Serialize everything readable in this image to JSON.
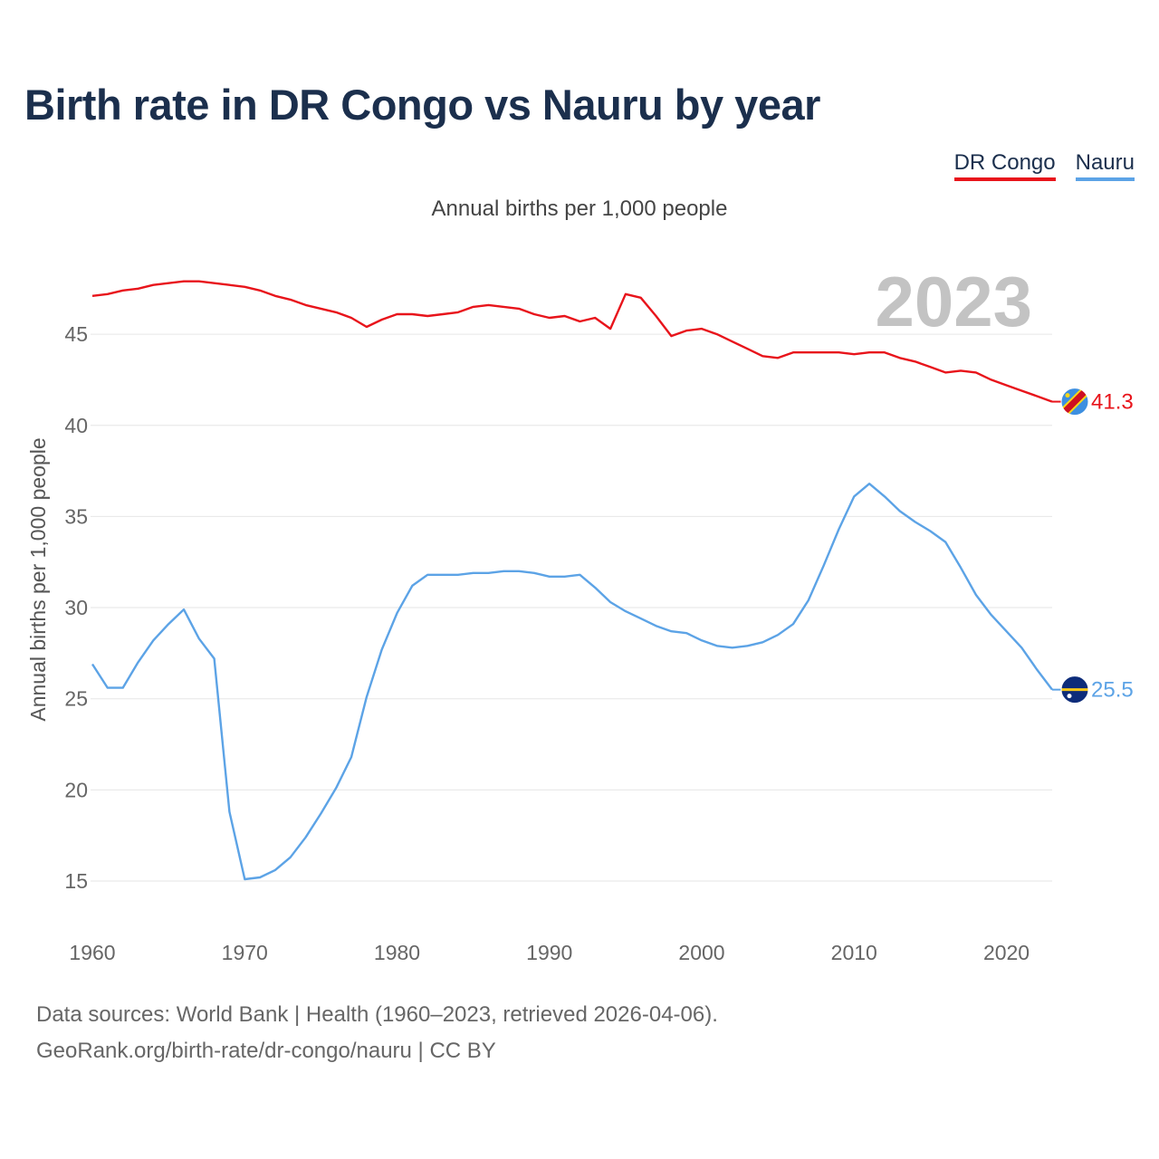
{
  "title": "Birth rate in DR Congo vs Nauru by year",
  "subtitle": "Annual births per 1,000 people",
  "legend": {
    "drc": "DR Congo",
    "nauru": "Nauru"
  },
  "source_line1": "Data sources: World Bank | Health (1960–2023, retrieved 2026-04-06).",
  "source_line2": "GeoRank.org/birth-rate/dr-congo/nauru | CC BY",
  "colors": {
    "drc": "#e8141b",
    "nauru": "#5ca3e6",
    "title": "#1b2f4d"
  },
  "chart_data": {
    "type": "line",
    "title": "Birth rate in DR Congo vs Nauru by year",
    "ylabel": "Annual births per 1,000 people",
    "xlabel": "",
    "year_display": "2023",
    "xlim": [
      1960,
      2023
    ],
    "ylim": [
      12.5,
      48.5
    ],
    "x_ticks": [
      1960,
      1970,
      1980,
      1990,
      2000,
      2010,
      2020
    ],
    "y_ticks": [
      15,
      20,
      25,
      30,
      35,
      40,
      45
    ],
    "x": [
      1960,
      1961,
      1962,
      1963,
      1964,
      1965,
      1966,
      1967,
      1968,
      1969,
      1970,
      1971,
      1972,
      1973,
      1974,
      1975,
      1976,
      1977,
      1978,
      1979,
      1980,
      1981,
      1982,
      1983,
      1984,
      1985,
      1986,
      1987,
      1988,
      1989,
      1990,
      1991,
      1992,
      1993,
      1994,
      1995,
      1996,
      1997,
      1998,
      1999,
      2000,
      2001,
      2002,
      2003,
      2004,
      2005,
      2006,
      2007,
      2008,
      2009,
      2010,
      2011,
      2012,
      2013,
      2014,
      2015,
      2016,
      2017,
      2018,
      2019,
      2020,
      2021,
      2022,
      2023
    ],
    "series": [
      {
        "name": "DR Congo",
        "color": "#e8141b",
        "end_label": "41.3",
        "values": [
          47.1,
          47.2,
          47.4,
          47.5,
          47.7,
          47.8,
          47.9,
          47.9,
          47.8,
          47.7,
          47.6,
          47.4,
          47.1,
          46.9,
          46.6,
          46.4,
          46.2,
          45.9,
          45.4,
          45.8,
          46.1,
          46.1,
          46.0,
          46.1,
          46.2,
          46.5,
          46.6,
          46.5,
          46.4,
          46.1,
          45.9,
          46.0,
          45.7,
          45.9,
          45.3,
          47.2,
          47.0,
          46.0,
          44.9,
          45.2,
          45.3,
          45.0,
          44.6,
          44.2,
          43.8,
          43.7,
          44.0,
          44.0,
          44.0,
          44.0,
          43.9,
          44.0,
          44.0,
          43.7,
          43.5,
          43.2,
          42.9,
          43.0,
          42.9,
          42.5,
          42.2,
          41.9,
          41.6,
          41.3
        ]
      },
      {
        "name": "Nauru",
        "color": "#5ca3e6",
        "end_label": "25.5",
        "values": [
          26.9,
          25.6,
          25.6,
          27.0,
          28.2,
          29.1,
          29.9,
          28.3,
          27.2,
          18.8,
          15.1,
          15.2,
          15.6,
          16.3,
          17.4,
          18.7,
          20.1,
          21.8,
          25.1,
          27.7,
          29.7,
          31.2,
          31.8,
          31.8,
          31.8,
          31.9,
          31.9,
          32.0,
          32.0,
          31.9,
          31.7,
          31.7,
          31.8,
          31.1,
          30.3,
          29.8,
          29.4,
          29.0,
          28.7,
          28.6,
          28.2,
          27.9,
          27.8,
          27.9,
          28.1,
          28.5,
          29.1,
          30.4,
          32.3,
          34.3,
          36.1,
          36.8,
          36.1,
          35.3,
          34.7,
          34.2,
          33.6,
          32.2,
          30.7,
          29.6,
          28.7,
          27.8,
          26.6,
          25.5
        ]
      }
    ]
  }
}
